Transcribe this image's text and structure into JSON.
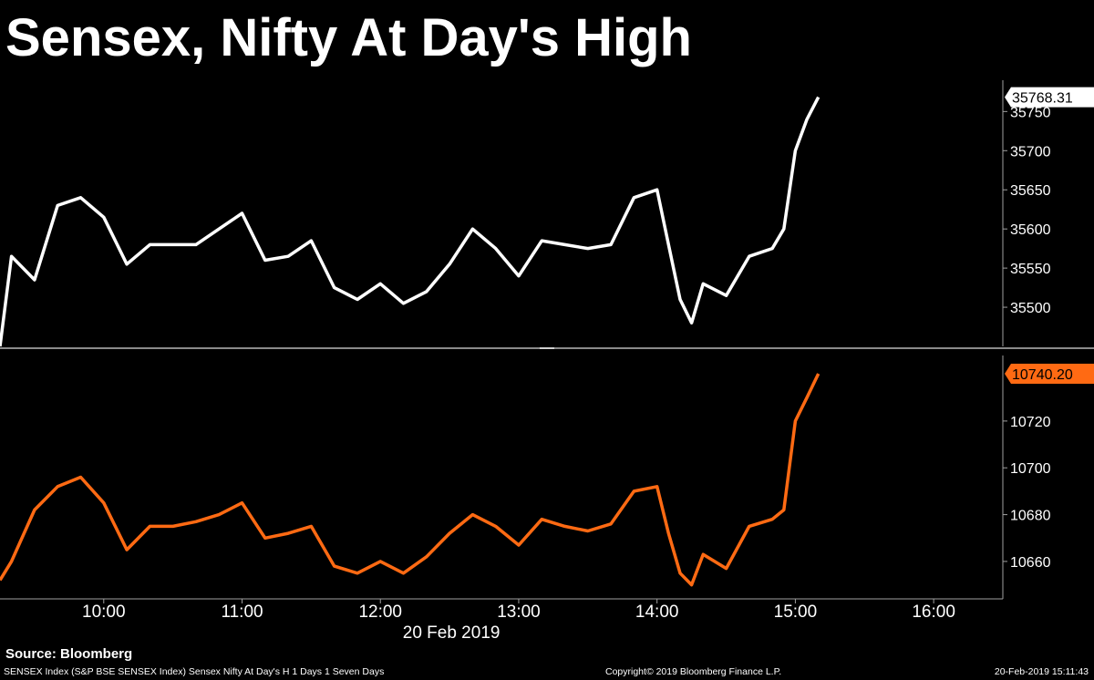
{
  "title": "Sensex, Nifty At Day's High",
  "source": "Source: Bloomberg",
  "footer": {
    "left": "SENSEX Index (S&P BSE SENSEX Index) Sensex Nifty At Day's H 1 Days 1 Seven Days",
    "copyright": "Copyright© 2019 Bloomberg Finance L.P.",
    "timestamp": "20-Feb-2019 15:11:43"
  },
  "colors": {
    "sensex": "#ffffff",
    "nifty": "#ff6a13",
    "background": "#000000",
    "axis": "#a0a0a0"
  },
  "chart_data": [
    {
      "type": "line",
      "series": [
        {
          "name": "",
          "color": "#ffffff",
          "last_value_label": "35768.31",
          "x": [
            "09:15",
            "09:20",
            "09:30",
            "09:40",
            "09:50",
            "10:00",
            "10:10",
            "10:20",
            "10:30",
            "10:40",
            "10:50",
            "11:00",
            "11:10",
            "11:20",
            "11:30",
            "11:40",
            "11:50",
            "12:00",
            "12:10",
            "12:20",
            "12:30",
            "12:40",
            "12:50",
            "13:00",
            "13:10",
            "13:20",
            "13:30",
            "13:40",
            "13:50",
            "14:00",
            "14:05",
            "14:10",
            "14:15",
            "14:20",
            "14:30",
            "14:40",
            "14:50",
            "14:55",
            "15:00",
            "15:05",
            "15:10"
          ],
          "values": [
            35450,
            35565,
            35535,
            35630,
            35640,
            35615,
            35555,
            35580,
            35580,
            35580,
            35600,
            35620,
            35560,
            35565,
            35585,
            35525,
            35510,
            35530,
            35505,
            35520,
            35555,
            35600,
            35575,
            35540,
            35585,
            35580,
            35575,
            35580,
            35640,
            35650,
            35580,
            35510,
            35480,
            35530,
            35515,
            35565,
            35575,
            35600,
            35700,
            35740,
            35768.31
          ]
        }
      ],
      "yticks": [
        35500,
        35550,
        35600,
        35650,
        35700,
        35750
      ],
      "ylim": [
        35450,
        35790
      ]
    },
    {
      "type": "line",
      "series": [
        {
          "name": "",
          "color": "#ff6a13",
          "last_value_label": "10740.20",
          "x": [
            "09:15",
            "09:20",
            "09:30",
            "09:40",
            "09:50",
            "10:00",
            "10:10",
            "10:20",
            "10:30",
            "10:40",
            "10:50",
            "11:00",
            "11:10",
            "11:20",
            "11:30",
            "11:40",
            "11:50",
            "12:00",
            "12:10",
            "12:20",
            "12:30",
            "12:40",
            "12:50",
            "13:00",
            "13:10",
            "13:20",
            "13:30",
            "13:40",
            "13:50",
            "14:00",
            "14:05",
            "14:10",
            "14:15",
            "14:20",
            "14:30",
            "14:40",
            "14:50",
            "14:55",
            "15:00",
            "15:05",
            "15:10"
          ],
          "values": [
            10652,
            10660,
            10682,
            10692,
            10696,
            10685,
            10665,
            10675,
            10675,
            10677,
            10680,
            10685,
            10670,
            10672,
            10675,
            10658,
            10655,
            10660,
            10655,
            10662,
            10672,
            10680,
            10675,
            10667,
            10678,
            10675,
            10673,
            10676,
            10690,
            10692,
            10672,
            10655,
            10650,
            10663,
            10657,
            10675,
            10678,
            10682,
            10720,
            10730,
            10740.2
          ]
        }
      ],
      "yticks": [
        10660,
        10680,
        10700,
        10720
      ],
      "ylim": [
        10644,
        10748
      ]
    }
  ],
  "xaxis": {
    "ticks": [
      "10:00",
      "11:00",
      "12:00",
      "13:00",
      "14:00",
      "15:00",
      "16:00"
    ],
    "date_label": "20 Feb 2019",
    "start": "09:15",
    "end": "16:30"
  }
}
